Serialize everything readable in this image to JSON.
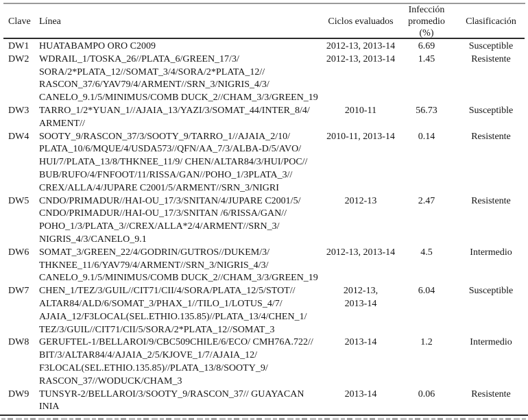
{
  "table": {
    "header": {
      "clave": "Clave",
      "linea": "Línea",
      "ciclos": "Ciclos evaluados",
      "infeccion_lines": [
        "Infección",
        "promedio",
        "(%)"
      ],
      "clasificacion": "Clasificación"
    },
    "rows": [
      {
        "clave": "DW1",
        "linea": [
          "HUATABAMPO ORO C2009"
        ],
        "ciclos": [
          "2012-13, 2013-14"
        ],
        "infeccion": "6.69",
        "clasificacion": "Susceptible"
      },
      {
        "clave": "DW2",
        "linea": [
          "WDRAIL_1/TOSKA_26//PLATA_6/GREEN_17/3/",
          "SORA/2*PLATA_12//SOMAT_3/4/SORA/2*PLATA_12//",
          "RASCON_37/6/YAV79/4/ARMENT//SRN_3/NIGRIS_4/3/",
          "CANELO_9.1/5/MINIMUS/COMB DUCK_2//CHAM_3/3/GREEN_19"
        ],
        "ciclos": [
          "2012-13, 2013-14"
        ],
        "infeccion": "1.45",
        "clasificacion": "Resistente"
      },
      {
        "clave": "DW3",
        "linea": [
          "TARRO_1/2*YUAN_1//AJAIA_13/YAZI/3/SOMAT_44/INTER_8/4/",
          "ARMENT//"
        ],
        "ciclos": [
          "2010-11"
        ],
        "infeccion": "56.73",
        "clasificacion": "Susceptible"
      },
      {
        "clave": "DW4",
        "linea": [
          "SOOTY_9/RASCON_37/3/SOOTY_9/TARRO_1//AJAIA_2/10/",
          "PLATA_10/6/MQUE/4/USDA573//QFN/AA_7/3/ALBA-D/5/AVO/",
          "HUI/7/PLATA_13/8/THKNEE_11/9/ CHEN/ALTAR84/3/HUI/POC//",
          "BUB/RUFO/4/FNFOOT/11/RISSA/GAN//POHO_1/3PLATA_3//",
          "CREX/ALLA/4/JUPARE C2001/5/ARMENT//SRN_3/NIGRI"
        ],
        "ciclos": [
          "2010-11, 2013-14"
        ],
        "infeccion": "0.14",
        "clasificacion": "Resistente"
      },
      {
        "clave": "DW5",
        "linea": [
          "CNDO/PRIMADUR//HAI-OU_17/3/SNITAN/4/JUPARE C2001/5/",
          "CNDO/PRIMADUR//HAI-OU_17/3/SNITAN /6/RISSA/GAN//",
          "POHO_1/3/PLATA_3//CREX/ALLA*2/4/ARMENT//SRN_3/",
          "NIGRIS_4/3/CANELO_9.1"
        ],
        "ciclos": [
          "2012-13"
        ],
        "infeccion": "2.47",
        "clasificacion": "Resistente"
      },
      {
        "clave": "DW6",
        "linea": [
          "SOMAT_3/GREEN_22/4/GODRIN/GUTROS//DUKEM/3/",
          "THKNEE_11/6/YAV79/4/ARMENT//SRN_3/NIGRIS_4/3/",
          "CANELO_9.1/5/MINIMUS/COMB DUCK_2//CHAM_3/3/GREEN_19"
        ],
        "ciclos": [
          "2012-13, 2013-14"
        ],
        "infeccion": "4.5",
        "clasificacion": "Intermedio"
      },
      {
        "clave": "DW7",
        "linea": [
          "CHEN_1/TEZ/3/GUIL//CIT71/CII/4/SORA/PLATA_12/5/STOT//",
          "ALTAR84/ALD/6/SOMAT_3/PHAX_1//TILO_1/LOTUS_4/7/",
          "AJAIA_12/F3LOCAL(SEL.ETHIO.135.85)//PLATA_13/4/CHEN_1/",
          "TEZ/3/GUIL//CIT71/CII/5/SORA/2*PLATA_12//SOMAT_3"
        ],
        "ciclos": [
          "2012-13,",
          "2013-14"
        ],
        "infeccion": "6.04",
        "clasificacion": "Susceptible"
      },
      {
        "clave": "DW8",
        "linea": [
          "GERUFTEL-1/BELLAROI/9/CBC509CHILE/6/ECO/ CMH76A.722//",
          "BIT/3/ALTAR84/4/AJAIA_2/5/KJOVE_1/7/AJAIA_12/",
          "F3LOCAL(SEL.ETHIO.135.85)//PLATA_13/8/SOOTY_9/",
          "RASCON_37//WODUCK/CHAM_3"
        ],
        "ciclos": [
          "2013-14"
        ],
        "infeccion": "1.2",
        "clasificacion": "Intermedio"
      },
      {
        "clave": "DW9",
        "linea": [
          "TUNSYR-2/BELLAROI/3/SOOTY_9/RASCON_37// GUAYACAN",
          "INIA"
        ],
        "ciclos": [
          "2013-14"
        ],
        "infeccion": "0.06",
        "clasificacion": "Resistente"
      }
    ]
  }
}
